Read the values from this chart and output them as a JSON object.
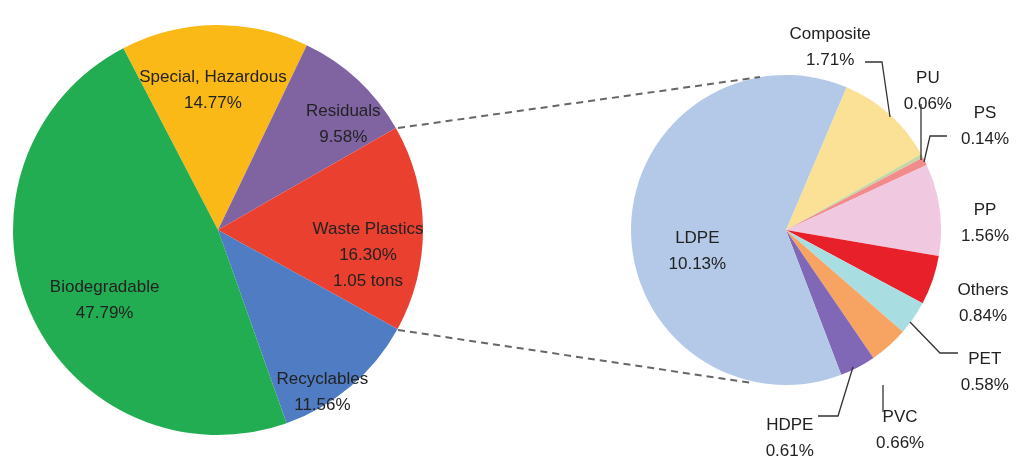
{
  "chart_data": [
    {
      "type": "pie",
      "categories": [
        "Special, Hazardous",
        "Residuals",
        "Waste Plastics",
        "Recyclables",
        "Biodegradable"
      ],
      "values": [
        14.77,
        9.58,
        16.3,
        11.56,
        47.79
      ],
      "colors": [
        "#fbb917",
        "#8064a2",
        "#ea4030",
        "#4f7cc2",
        "#23ad52"
      ],
      "value_labels": [
        "14.77%",
        "9.58%",
        "16.30%",
        "11.56%",
        "47.79%"
      ],
      "annotations": [
        {
          "text": "1.05 tons",
          "x": "Waste Plastics"
        }
      ]
    },
    {
      "type": "pie",
      "categories": [
        "Composite",
        "PU",
        "PS",
        "PP",
        "Others",
        "PET",
        "PVC",
        "HDPE",
        "LDPE"
      ],
      "values": [
        1.71,
        0.06,
        0.14,
        1.56,
        0.84,
        0.58,
        0.66,
        0.61,
        10.13
      ],
      "colors": [
        "#fbe196",
        "#c5d6a5",
        "#f28b8b",
        "#f0c8e0",
        "#e8202a",
        "#a8dee2",
        "#f7a463",
        "#8068b6",
        "#b3c9e7"
      ],
      "value_labels": [
        "1.71%",
        "0.06%",
        "0.14%",
        "1.56%",
        "0.84%",
        "0.58%",
        "0.66%",
        "0.61%",
        "10.13%"
      ]
    }
  ]
}
